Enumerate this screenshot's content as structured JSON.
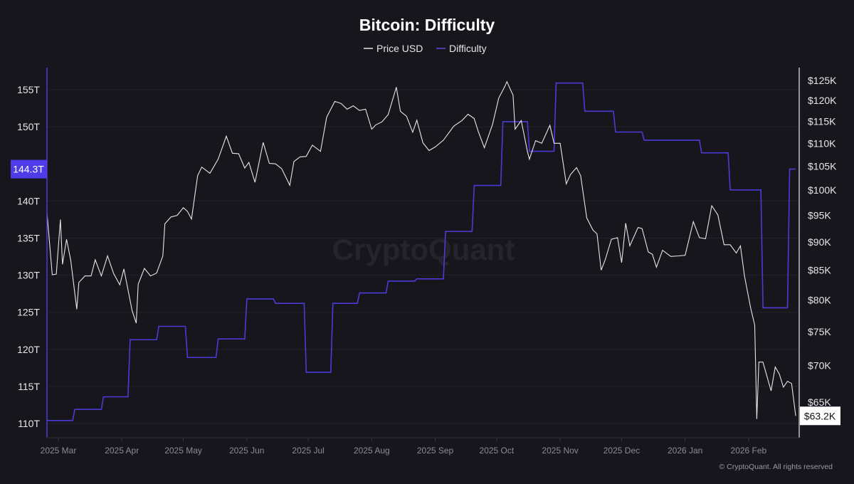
{
  "chart_data": {
    "type": "line",
    "title": "Bitcoin: Difficulty",
    "legend": {
      "placement": "top-center",
      "entries": [
        "Price USD",
        "Difficulty"
      ]
    },
    "watermark": "CryptoQuant",
    "copyright": "© CryptoQuant. All rights reserved",
    "colors": {
      "background": "#17161d",
      "price": "#e6e6ea",
      "difficulty": "#4b3bd6",
      "difficulty_badge": "#4f3ce8"
    },
    "grid": true,
    "x_axis": {
      "type": "date",
      "range": [
        "2025-02-23",
        "2026-02-24"
      ],
      "ticks": [
        {
          "date": "2025-03-01",
          "label": "2025 Mar"
        },
        {
          "date": "2025-04-01",
          "label": "2025 Apr"
        },
        {
          "date": "2025-05-01",
          "label": "2025 May"
        },
        {
          "date": "2025-06-01",
          "label": "2025 Jun"
        },
        {
          "date": "2025-07-01",
          "label": "2025 Jul"
        },
        {
          "date": "2025-08-01",
          "label": "2025 Aug"
        },
        {
          "date": "2025-09-01",
          "label": "2025 Sep"
        },
        {
          "date": "2025-10-01",
          "label": "2025 Oct"
        },
        {
          "date": "2025-11-01",
          "label": "2025 Nov"
        },
        {
          "date": "2025-12-01",
          "label": "2025 Dec"
        },
        {
          "date": "2026-01-01",
          "label": "2026 Jan"
        },
        {
          "date": "2026-02-01",
          "label": "2026 Feb"
        }
      ]
    },
    "y_left": {
      "series": "Difficulty",
      "unit": "T",
      "scale": "linear",
      "range": [
        108,
        158
      ],
      "ticks": [
        {
          "v": 110,
          "label": "110T"
        },
        {
          "v": 115,
          "label": "115T"
        },
        {
          "v": 120,
          "label": "120T"
        },
        {
          "v": 125,
          "label": "125T"
        },
        {
          "v": 130,
          "label": "130T"
        },
        {
          "v": 135,
          "label": "135T"
        },
        {
          "v": 140,
          "label": "140T"
        },
        {
          "v": 150,
          "label": "150T"
        },
        {
          "v": 155,
          "label": "155T"
        }
      ],
      "current_label": "144.3T",
      "current_value": 144.3
    },
    "y_right": {
      "series": "Price USD",
      "unit": "USD",
      "scale": "log",
      "range": [
        60000,
        130000
      ],
      "ticks": [
        {
          "v": 65000,
          "label": "$65K"
        },
        {
          "v": 70000,
          "label": "$70K"
        },
        {
          "v": 75000,
          "label": "$75K"
        },
        {
          "v": 80000,
          "label": "$80K"
        },
        {
          "v": 85000,
          "label": "$85K"
        },
        {
          "v": 90000,
          "label": "$90K"
        },
        {
          "v": 95000,
          "label": "$95K"
        },
        {
          "v": 100000,
          "label": "$100K"
        },
        {
          "v": 105000,
          "label": "$105K"
        },
        {
          "v": 110000,
          "label": "$110K"
        },
        {
          "v": 115000,
          "label": "$115K"
        },
        {
          "v": 120000,
          "label": "$120K"
        },
        {
          "v": 125000,
          "label": "$125K"
        }
      ],
      "current_label": "$63.2K",
      "current_value": 63200
    },
    "series": [
      {
        "name": "Price USD",
        "axis": "right",
        "points": [
          [
            "2025-02-23",
            95500
          ],
          [
            "2025-02-25",
            88500
          ],
          [
            "2025-02-26",
            84200
          ],
          [
            "2025-02-28",
            84300
          ],
          [
            "2025-03-02",
            94200
          ],
          [
            "2025-03-03",
            86000
          ],
          [
            "2025-03-05",
            90500
          ],
          [
            "2025-03-07",
            86800
          ],
          [
            "2025-03-10",
            78500
          ],
          [
            "2025-03-11",
            82900
          ],
          [
            "2025-03-14",
            84000
          ],
          [
            "2025-03-17",
            84000
          ],
          [
            "2025-03-19",
            86800
          ],
          [
            "2025-03-22",
            84000
          ],
          [
            "2025-03-25",
            87500
          ],
          [
            "2025-03-28",
            84400
          ],
          [
            "2025-03-31",
            82500
          ],
          [
            "2025-04-02",
            85200
          ],
          [
            "2025-04-06",
            78300
          ],
          [
            "2025-04-08",
            76300
          ],
          [
            "2025-04-09",
            82600
          ],
          [
            "2025-04-12",
            85300
          ],
          [
            "2025-04-15",
            84000
          ],
          [
            "2025-04-18",
            84500
          ],
          [
            "2025-04-21",
            87500
          ],
          [
            "2025-04-22",
            93400
          ],
          [
            "2025-04-25",
            94700
          ],
          [
            "2025-04-28",
            95000
          ],
          [
            "2025-05-01",
            96500
          ],
          [
            "2025-05-03",
            95800
          ],
          [
            "2025-05-05",
            94300
          ],
          [
            "2025-05-08",
            103000
          ],
          [
            "2025-05-10",
            104800
          ],
          [
            "2025-05-14",
            103500
          ],
          [
            "2025-05-18",
            106500
          ],
          [
            "2025-05-22",
            111600
          ],
          [
            "2025-05-25",
            107800
          ],
          [
            "2025-05-28",
            107700
          ],
          [
            "2025-05-31",
            104600
          ],
          [
            "2025-06-02",
            105800
          ],
          [
            "2025-06-05",
            101600
          ],
          [
            "2025-06-09",
            110200
          ],
          [
            "2025-06-12",
            105600
          ],
          [
            "2025-06-15",
            105500
          ],
          [
            "2025-06-18",
            104500
          ],
          [
            "2025-06-22",
            101000
          ],
          [
            "2025-06-24",
            106000
          ],
          [
            "2025-06-27",
            107000
          ],
          [
            "2025-06-30",
            107100
          ],
          [
            "2025-07-03",
            109600
          ],
          [
            "2025-07-07",
            108200
          ],
          [
            "2025-07-10",
            116000
          ],
          [
            "2025-07-14",
            119800
          ],
          [
            "2025-07-17",
            119300
          ],
          [
            "2025-07-20",
            117900
          ],
          [
            "2025-07-23",
            118700
          ],
          [
            "2025-07-26",
            117600
          ],
          [
            "2025-07-29",
            117900
          ],
          [
            "2025-08-01",
            113200
          ],
          [
            "2025-08-03",
            114200
          ],
          [
            "2025-08-06",
            114900
          ],
          [
            "2025-08-09",
            116600
          ],
          [
            "2025-08-13",
            123300
          ],
          [
            "2025-08-15",
            117400
          ],
          [
            "2025-08-18",
            116200
          ],
          [
            "2025-08-21",
            112500
          ],
          [
            "2025-08-23",
            115300
          ],
          [
            "2025-08-26",
            110100
          ],
          [
            "2025-08-29",
            108400
          ],
          [
            "2025-09-01",
            109200
          ],
          [
            "2025-09-05",
            110700
          ],
          [
            "2025-09-10",
            113900
          ],
          [
            "2025-09-14",
            115200
          ],
          [
            "2025-09-17",
            116700
          ],
          [
            "2025-09-20",
            115700
          ],
          [
            "2025-09-22",
            112700
          ],
          [
            "2025-09-25",
            109000
          ],
          [
            "2025-09-29",
            114300
          ],
          [
            "2025-10-02",
            120600
          ],
          [
            "2025-10-05",
            123500
          ],
          [
            "2025-10-06",
            124700
          ],
          [
            "2025-10-09",
            121300
          ],
          [
            "2025-10-10",
            113200
          ],
          [
            "2025-10-13",
            115200
          ],
          [
            "2025-10-16",
            108200
          ],
          [
            "2025-10-17",
            106500
          ],
          [
            "2025-10-20",
            110600
          ],
          [
            "2025-10-23",
            110000
          ],
          [
            "2025-10-27",
            114100
          ],
          [
            "2025-10-29",
            110000
          ],
          [
            "2025-11-01",
            110000
          ],
          [
            "2025-11-04",
            101300
          ],
          [
            "2025-11-06",
            103200
          ],
          [
            "2025-11-09",
            104700
          ],
          [
            "2025-11-11",
            103000
          ],
          [
            "2025-11-14",
            94500
          ],
          [
            "2025-11-17",
            92200
          ],
          [
            "2025-11-19",
            91500
          ],
          [
            "2025-11-21",
            85000
          ],
          [
            "2025-11-23",
            86800
          ],
          [
            "2025-11-26",
            90500
          ],
          [
            "2025-11-29",
            90800
          ],
          [
            "2025-12-01",
            86300
          ],
          [
            "2025-12-03",
            93500
          ],
          [
            "2025-12-05",
            89300
          ],
          [
            "2025-12-09",
            92700
          ],
          [
            "2025-12-11",
            92500
          ],
          [
            "2025-12-14",
            88200
          ],
          [
            "2025-12-16",
            87800
          ],
          [
            "2025-12-18",
            85500
          ],
          [
            "2025-12-21",
            88500
          ],
          [
            "2025-12-25",
            87400
          ],
          [
            "2025-12-29",
            87500
          ],
          [
            "2026-01-01",
            87600
          ],
          [
            "2026-01-05",
            93800
          ],
          [
            "2026-01-08",
            90800
          ],
          [
            "2026-01-11",
            90600
          ],
          [
            "2026-01-14",
            96900
          ],
          [
            "2026-01-17",
            95100
          ],
          [
            "2026-01-20",
            89500
          ],
          [
            "2026-01-23",
            89500
          ],
          [
            "2026-01-26",
            88000
          ],
          [
            "2026-01-28",
            89300
          ],
          [
            "2026-01-30",
            84000
          ],
          [
            "2026-02-02",
            78700
          ],
          [
            "2026-02-04",
            76000
          ],
          [
            "2026-02-05",
            62800
          ],
          [
            "2026-02-06",
            70500
          ],
          [
            "2026-02-08",
            70500
          ],
          [
            "2026-02-12",
            66500
          ],
          [
            "2026-02-14",
            69800
          ],
          [
            "2026-02-16",
            68800
          ],
          [
            "2026-02-18",
            67000
          ],
          [
            "2026-02-20",
            67800
          ],
          [
            "2026-02-22",
            67500
          ],
          [
            "2026-02-24",
            63200
          ]
        ]
      },
      {
        "name": "Difficulty",
        "axis": "left",
        "steps": [
          [
            "2025-02-23",
            110.4
          ],
          [
            "2025-03-08",
            111.9
          ],
          [
            "2025-03-22",
            113.6
          ],
          [
            "2025-04-04",
            121.3
          ],
          [
            "2025-04-18",
            123.1
          ],
          [
            "2025-05-02",
            118.9
          ],
          [
            "2025-05-17",
            121.4
          ],
          [
            "2025-05-31",
            126.8
          ],
          [
            "2025-06-14",
            126.2
          ],
          [
            "2025-06-29",
            116.9
          ],
          [
            "2025-07-12",
            126.2
          ],
          [
            "2025-07-25",
            127.6
          ],
          [
            "2025-08-08",
            129.2
          ],
          [
            "2025-08-22",
            129.5
          ],
          [
            "2025-09-05",
            135.9
          ],
          [
            "2025-09-19",
            142.1
          ],
          [
            "2025-10-03",
            150.7
          ],
          [
            "2025-10-16",
            146.7
          ],
          [
            "2025-10-29",
            155.9
          ],
          [
            "2025-11-12",
            152.1
          ],
          [
            "2025-11-27",
            149.3
          ],
          [
            "2025-12-11",
            148.2
          ],
          [
            "2026-01-08",
            146.5
          ],
          [
            "2026-01-22",
            141.5
          ],
          [
            "2026-02-07",
            125.6
          ],
          [
            "2026-02-20",
            144.3
          ]
        ]
      }
    ]
  }
}
